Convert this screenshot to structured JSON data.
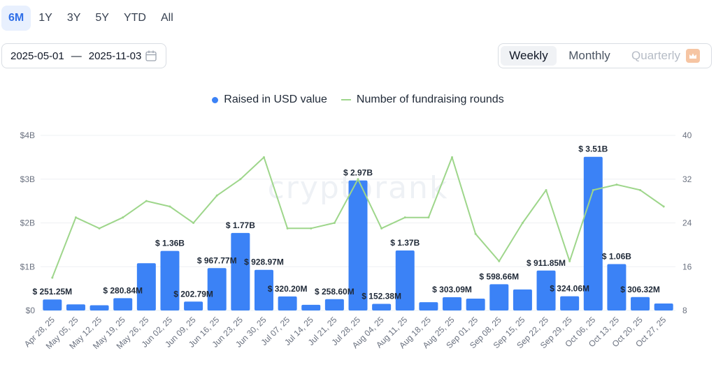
{
  "range_tabs": [
    "6M",
    "1Y",
    "3Y",
    "5Y",
    "YTD",
    "All"
  ],
  "active_range": "6M",
  "date_range": {
    "start": "2025-05-01",
    "sep": "—",
    "end": "2025-11-03"
  },
  "period_toggle": {
    "weekly": "Weekly",
    "monthly": "Monthly",
    "quarterly": "Quarterly",
    "active": "Weekly"
  },
  "colors": {
    "bar": "#3b82f6",
    "line": "#9ed68b",
    "accent": "#2f6fe8",
    "grid": "#eef0f3"
  },
  "watermark": "cryptorank",
  "chart_data": {
    "type": "bar",
    "categories": [
      "Apr 28, 25",
      "May 05, 25",
      "May 12, 25",
      "May 19, 25",
      "May 26, 25",
      "Jun 02, 25",
      "Jun 09, 25",
      "Jun 16, 25",
      "Jun 23, 25",
      "Jun 30, 25",
      "Jul 07, 25",
      "Jul 14, 25",
      "Jul 21, 25",
      "Jul 28, 25",
      "Aug 04, 25",
      "Aug 11, 25",
      "Aug 18, 25",
      "Aug 25, 25",
      "Sep 01, 25",
      "Sep 08, 25",
      "Sep 15, 25",
      "Sep 22, 25",
      "Sep 29, 25",
      "Oct 06, 25",
      "Oct 13, 25",
      "Oct 20, 25",
      "Oct 27, 25"
    ],
    "series": [
      {
        "name": "Raised in USD value",
        "axis": "left",
        "type": "bar",
        "values": [
          251.25,
          140,
          120,
          280.84,
          1080,
          1360,
          202.79,
          967.77,
          1770,
          928.97,
          320.2,
          130,
          258.6,
          2970,
          152.38,
          1370,
          190,
          303.09,
          270,
          598.66,
          480,
          911.85,
          324.06,
          3510,
          1060,
          306.32,
          160
        ],
        "labels": [
          "$ 251.25M",
          "",
          "",
          "$ 280.84M",
          "",
          "$ 1.36B",
          "$ 202.79M",
          "$ 967.77M",
          "$ 1.77B",
          "$ 928.97M",
          "$ 320.20M",
          "",
          "$ 258.60M",
          "$ 2.97B",
          "$ 152.38M",
          "$ 1.37B",
          "",
          "$ 303.09M",
          "",
          "$ 598.66M",
          "",
          "$ 911.85M",
          "$ 324.06M",
          "$ 3.51B",
          "$ 1.06B",
          "$ 306.32M",
          ""
        ]
      },
      {
        "name": "Number of fundraising rounds",
        "axis": "right",
        "type": "line",
        "values": [
          14,
          25,
          23,
          25,
          28,
          27,
          24,
          29,
          32,
          36,
          23,
          23,
          24,
          32,
          23,
          25,
          25,
          36,
          22,
          17,
          24,
          30,
          17,
          30,
          31,
          30,
          27
        ]
      }
    ],
    "y_left": {
      "ticks": [
        "$0",
        "$1B",
        "$2B",
        "$3B",
        "$4B"
      ],
      "range_musd": [
        0,
        4000
      ]
    },
    "y_right": {
      "ticks": [
        "8",
        "16",
        "24",
        "32",
        "40"
      ],
      "range": [
        8,
        40
      ]
    },
    "grid": true,
    "legend_position": "top-center"
  }
}
